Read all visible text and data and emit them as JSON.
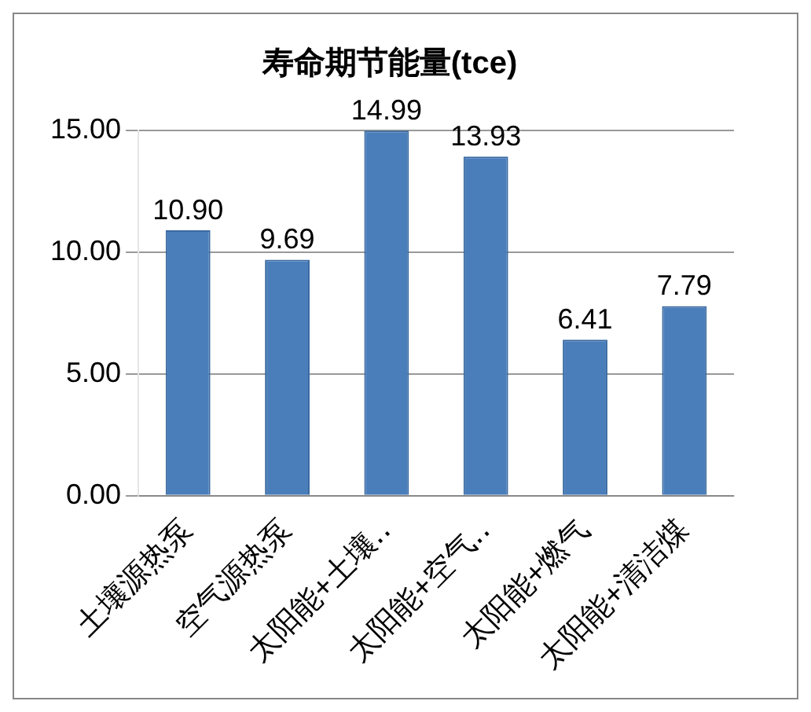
{
  "chart_data": {
    "type": "bar",
    "title": "寿命期节能量(tce)",
    "categories": [
      "土壤源热泵",
      "空气源热泵",
      "太阳能+土壤‥",
      "太阳能+空气‥",
      "太阳能+燃气",
      "太阳能+清洁煤"
    ],
    "values": [
      10.9,
      9.69,
      14.99,
      13.93,
      6.41,
      7.79
    ],
    "value_labels": [
      "10.90",
      "9.69",
      "14.99",
      "13.93",
      "6.41",
      "7.79"
    ],
    "color": "#4a7ebb",
    "ylim": [
      0,
      15
    ],
    "yticks": [
      {
        "value": 0,
        "label": "0.00"
      },
      {
        "value": 5,
        "label": "5.00"
      },
      {
        "value": 10,
        "label": "10.00"
      },
      {
        "value": 15,
        "label": "15.00"
      }
    ],
    "grid": "y",
    "legend": false
  }
}
